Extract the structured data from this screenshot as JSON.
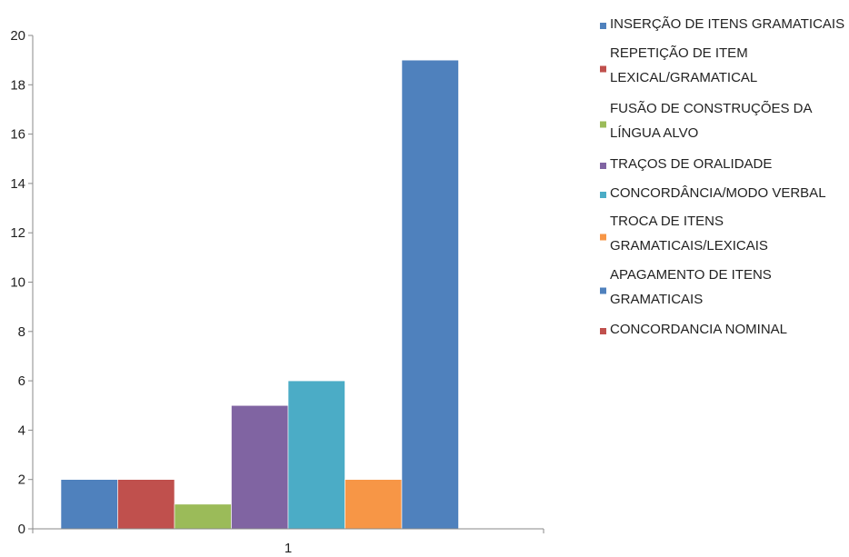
{
  "chart_data": {
    "type": "bar",
    "categories": [
      "1"
    ],
    "series": [
      {
        "name": "INSERÇÃO DE ITENS GRAMATICAIS",
        "values": [
          2
        ],
        "color": "#4F81BD"
      },
      {
        "name": "REPETIÇÃO DE ITEM LEXICAL/GRAMATICAL",
        "values": [
          2
        ],
        "color": "#C0504D"
      },
      {
        "name": "FUSÃO DE CONSTRUÇÕES DA LÍNGUA ALVO",
        "values": [
          1
        ],
        "color": "#9BBB59"
      },
      {
        "name": "TRAÇOS DE ORALIDADE",
        "values": [
          5
        ],
        "color": "#8064A2"
      },
      {
        "name": "CONCORDÂNCIA/MODO VERBAL",
        "values": [
          6
        ],
        "color": "#4BACC6"
      },
      {
        "name": "TROCA DE ITENS GRAMATICAIS/LEXICAIS",
        "values": [
          2
        ],
        "color": "#F79646"
      },
      {
        "name": "APAGAMENTO DE ITENS GRAMATICAIS",
        "values": [
          19
        ],
        "color": "#4F81BD"
      },
      {
        "name": "CONCORDANCIA NOMINAL",
        "values": [
          0
        ],
        "color": "#C0504D"
      }
    ],
    "y_ticks": [
      "0",
      "2",
      "4",
      "6",
      "8",
      "10",
      "12",
      "14",
      "16",
      "18",
      "20"
    ],
    "ylim": [
      0,
      20
    ],
    "grid": false,
    "legend_position": "right",
    "title": "",
    "xlabel": "",
    "ylabel": ""
  }
}
